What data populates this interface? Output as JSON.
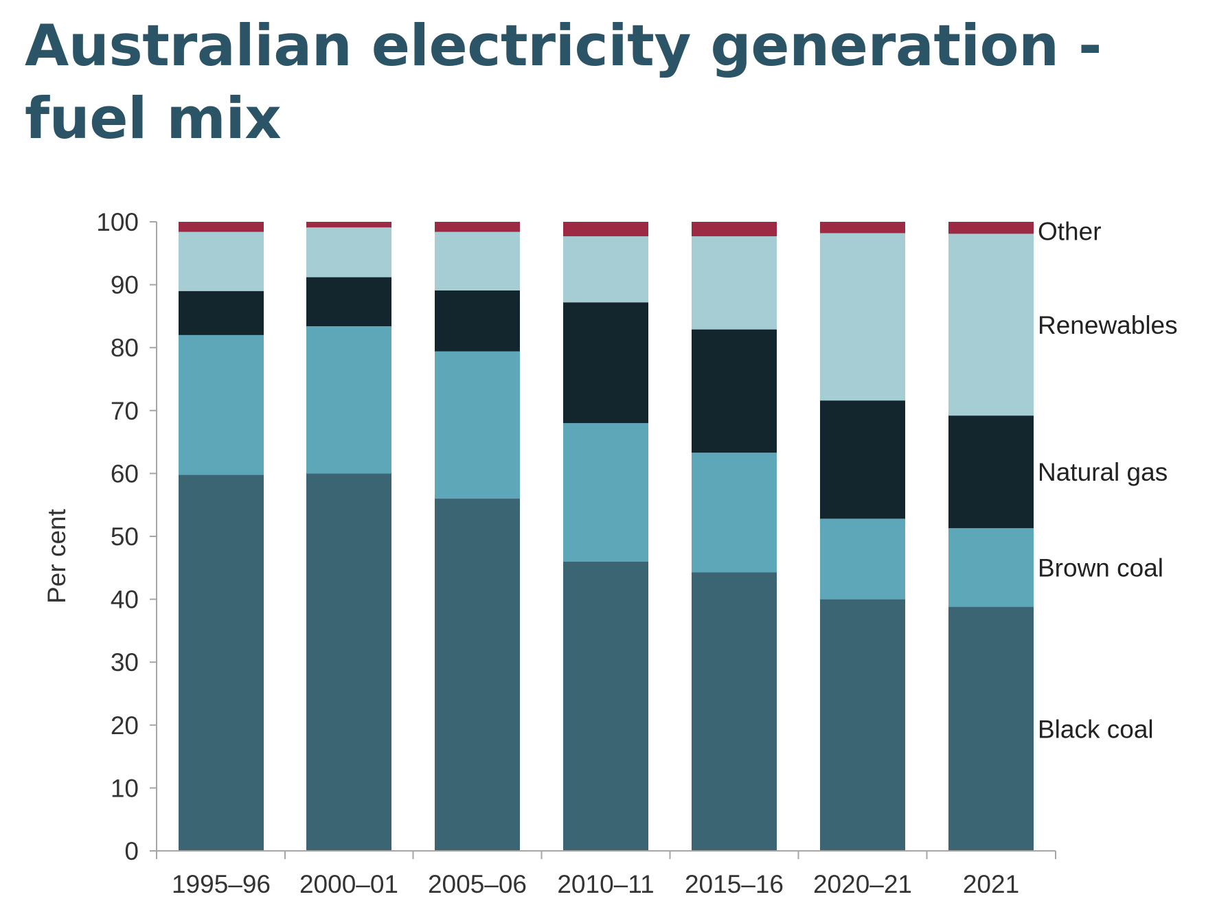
{
  "title": "Australian electricity generation - fuel mix",
  "chart_data": {
    "type": "bar",
    "stacked": true,
    "categories": [
      "1995–96",
      "2000–01",
      "2005–06",
      "2010–11",
      "2015–16",
      "2020–21",
      "2021"
    ],
    "ylabel": "Per cent",
    "ylim": [
      0,
      100
    ],
    "yticks": [
      "0",
      "10",
      "20",
      "30",
      "40",
      "50",
      "60",
      "70",
      "80",
      "90",
      "100"
    ],
    "grid": false,
    "legend": "inline labels at right of last bar",
    "series": [
      {
        "name": "Black coal",
        "color": "#3c6573",
        "values": [
          59.8,
          60.0,
          56.0,
          46.0,
          44.3,
          40.0,
          38.8
        ]
      },
      {
        "name": "Brown coal",
        "color": "#5ea7b8",
        "values": [
          22.2,
          23.4,
          23.4,
          22.0,
          19.0,
          12.8,
          12.5
        ]
      },
      {
        "name": "Natural gas",
        "color": "#14262d",
        "values": [
          7.0,
          7.8,
          9.7,
          19.2,
          19.6,
          18.8,
          17.9
        ]
      },
      {
        "name": "Renewables",
        "color": "#a5cdd3",
        "values": [
          9.4,
          7.9,
          9.3,
          10.5,
          14.8,
          26.6,
          28.9
        ]
      },
      {
        "name": "Other",
        "color": "#9c2a45",
        "values": [
          1.6,
          0.9,
          1.6,
          2.3,
          2.3,
          1.8,
          1.9
        ]
      }
    ]
  }
}
